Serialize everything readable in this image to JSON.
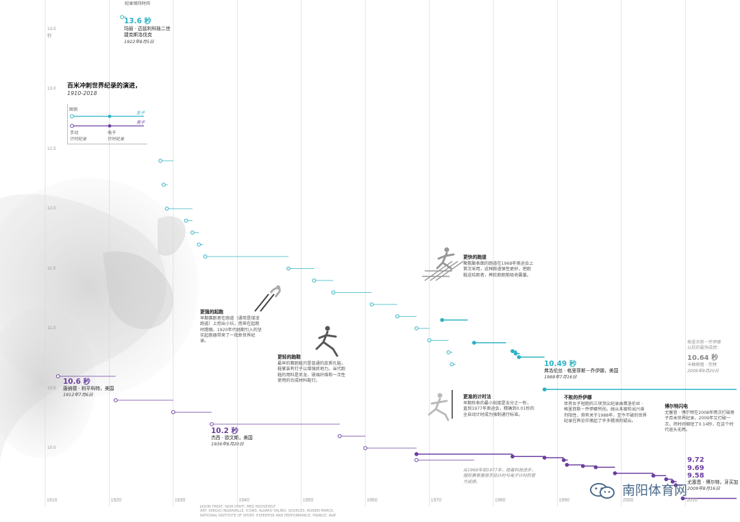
{
  "title": "百米冲刺世界纪录的演进，",
  "subtitle": "1910-2018",
  "colors": {
    "women": "#2bb2c3",
    "men": "#6b3fa0",
    "grid": "#d8d8d8",
    "text": "#222222"
  },
  "legend": {
    "label": "图例",
    "women": "女子",
    "men": "男子",
    "manual": "手动\n计时纪录",
    "electronic": "电子\n计时纪录"
  },
  "top_label": "纪录保持时间",
  "records": {
    "women_1922": {
      "time": "13.6 秒",
      "name": "玛丽 · 迈兹利科娃二世\n捷克斯洛伐克",
      "date": "1922年8月5日"
    },
    "men_1912": {
      "time": "10.6 秒",
      "name": "唐纳德 · 利平科特，美国",
      "date": "1912年7月6日"
    },
    "men_1936": {
      "time": "10.2 秒",
      "name": "杰西 · 欧文斯，美国",
      "date": "1936年6月20日"
    },
    "women_1988": {
      "time": "10.49 秒",
      "name": "弗洛伦丝 · 格里菲斯－乔伊娜，美国",
      "date": "1988年7月16日"
    },
    "women_fastest": {
      "head": "格里夫斯－乔伊娜\n以前的最快成绩：",
      "time": "10.64 秒",
      "name": "卡梅莉塔 · 杰特",
      "date": "2009年9月20日"
    },
    "men_recent": {
      "t1": "9.72",
      "t2": "9.69",
      "t3": "9.58",
      "name": "尤塞恩 · 博尔特，牙买加",
      "date": "2009年8月16日"
    }
  },
  "notes": {
    "blocks": {
      "head": "更强的起跑",
      "body": "早期赛跑者在跑道（通常是煤渣跑道）上挖出小坑，用来在起跑时蹬踏。1920年代她期引入的坚实起跑器带来了一批新世界纪录。"
    },
    "shoes": {
      "head": "更轻的跑鞋",
      "body": "最早的赛跑鞋只是普通的皮质孔鞋，鞋掌装有钉子以增强抓地力。当代跑鞋的用料是尼龙、玻璃纤维和一次性使用的合成材料鞋钉。"
    },
    "track": {
      "head": "更快的跑道",
      "body": "聚氨酯表面的跑道在1968年奥运会上首次采用，这种跑道弹性更好，把跑鞋送给跑者，摔跤跑跑能吸收震量。"
    },
    "timing": {
      "head": "更准的计时法",
      "body": "早期秒表的最小刻度是五分之一秒，直到1977年奥运会，精确到0.01秒的全自动计时成为强制通行标准。"
    },
    "flojo": {
      "head": "不败的乔伊娜",
      "body": "世界女子短跑的三项顶尖纪录由弗洛伦丝 · 格里菲斯－乔伊娜所创。她从未被检出兴奋剂阳性，但有关于1988年，至今不破的世界纪录在舆论中激起了许多猜测的疑云。"
    },
    "bolt": {
      "head": "博尔特闪电",
      "body": "尤塞恩 · 博尔特在2008年两次打破男子百米世界纪录，2009年又打破一次，将时间缩短了0.14秒，在这个时代遥头无两。"
    },
    "electronic": {
      "body": "从1968年到1977年，随着科技进步，国际赛事兼用手动计时与电子计时的官方成绩。"
    }
  },
  "credits": "JASON TREAT, NGM STAFF; MEG ROOSEVELT\nART: SERGIO INGRAVALLE. ICONS: ALVARO VALIÑO. SOURCES: ADRIEN MARCK,\nNATIONAL INSTITUTE OF SPORT, EXPERTISE AND PERFORMANCE, FRANCE; IAAF",
  "watermark": "南阳体育网",
  "chart_data": {
    "type": "line",
    "title": "百米冲刺世界纪录的演进，",
    "subtitle": "1910-2018",
    "xlabel": "",
    "ylabel": "秒",
    "xlim": [
      1910,
      2018
    ],
    "ylim": [
      9.5,
      13.75
    ],
    "x_ticks": [
      1910,
      1920,
      1930,
      1940,
      1950,
      1960,
      1970,
      1980,
      1990,
      2000,
      2010
    ],
    "y_ticks": [
      10.0,
      10.5,
      11.0,
      11.5,
      12.0,
      12.5,
      13.0,
      13.5
    ],
    "y_tick_labels": [
      "10.0",
      "10.5",
      "11.0",
      "11.5",
      "12.0",
      "12.5",
      "13.0",
      "13.5\n秒"
    ],
    "series": [
      {
        "name": "女子",
        "color": "#2bb2c3",
        "records": [
          {
            "time": 13.6,
            "start": 1922,
            "end": 1922.3,
            "timing": "manual"
          },
          {
            "time": 12.4,
            "start": 1928,
            "end": 1930,
            "timing": "manual"
          },
          {
            "time": 12.2,
            "start": 1928.5,
            "end": 1929,
            "timing": "manual"
          },
          {
            "time": 12.0,
            "start": 1929,
            "end": 1933,
            "timing": "manual"
          },
          {
            "time": 11.9,
            "start": 1932,
            "end": 1933,
            "timing": "manual"
          },
          {
            "time": 11.8,
            "start": 1933,
            "end": 1934,
            "timing": "manual"
          },
          {
            "time": 11.7,
            "start": 1934,
            "end": 1934.5,
            "timing": "manual"
          },
          {
            "time": 11.6,
            "start": 1935,
            "end": 1948,
            "timing": "manual"
          },
          {
            "time": 11.5,
            "start": 1948,
            "end": 1952,
            "timing": "manual"
          },
          {
            "time": 11.4,
            "start": 1952,
            "end": 1955,
            "timing": "manual"
          },
          {
            "time": 11.3,
            "start": 1955,
            "end": 1961,
            "timing": "manual"
          },
          {
            "time": 11.2,
            "start": 1961,
            "end": 1965,
            "timing": "manual"
          },
          {
            "time": 11.1,
            "start": 1965,
            "end": 1968,
            "timing": "manual"
          },
          {
            "time": 11.0,
            "start": 1968,
            "end": 1970,
            "timing": "manual"
          },
          {
            "time": 10.9,
            "start": 1970,
            "end": 1973,
            "timing": "manual"
          },
          {
            "time": 11.07,
            "start": 1972,
            "end": 1976,
            "timing": "electronic"
          },
          {
            "time": 10.8,
            "start": 1973,
            "end": 1973.5,
            "timing": "manual"
          },
          {
            "time": 10.7,
            "start": 1973.5,
            "end": 1974,
            "timing": "manual"
          },
          {
            "time": 10.88,
            "start": 1977,
            "end": 1982,
            "timing": "electronic"
          },
          {
            "time": 10.81,
            "start": 1983,
            "end": 1983.5,
            "timing": "electronic"
          },
          {
            "time": 10.79,
            "start": 1983.5,
            "end": 1984,
            "timing": "electronic"
          },
          {
            "time": 10.76,
            "start": 1984,
            "end": 1988,
            "timing": "electronic"
          },
          {
            "time": 10.49,
            "start": 1988,
            "end": 2018,
            "timing": "electronic"
          }
        ]
      },
      {
        "name": "男子",
        "color": "#6b3fa0",
        "records": [
          {
            "time": 10.6,
            "start": 1912,
            "end": 1921,
            "timing": "manual"
          },
          {
            "time": 10.4,
            "start": 1921,
            "end": 1930,
            "timing": "manual"
          },
          {
            "time": 10.3,
            "start": 1930,
            "end": 1936,
            "timing": "manual"
          },
          {
            "time": 10.2,
            "start": 1936,
            "end": 1956,
            "timing": "manual"
          },
          {
            "time": 10.1,
            "start": 1956,
            "end": 1960,
            "timing": "manual"
          },
          {
            "time": 10.0,
            "start": 1960,
            "end": 1968,
            "timing": "manual"
          },
          {
            "time": 9.9,
            "start": 1968,
            "end": 1977,
            "timing": "manual"
          },
          {
            "time": 9.95,
            "start": 1968,
            "end": 1983,
            "timing": "electronic"
          },
          {
            "time": 9.93,
            "start": 1983,
            "end": 1988,
            "timing": "electronic"
          },
          {
            "time": 9.92,
            "start": 1988,
            "end": 1991,
            "timing": "electronic"
          },
          {
            "time": 9.9,
            "start": 1991,
            "end": 1991.5,
            "timing": "electronic"
          },
          {
            "time": 9.86,
            "start": 1991.5,
            "end": 1994,
            "timing": "electronic"
          },
          {
            "time": 9.85,
            "start": 1994,
            "end": 1996,
            "timing": "electronic"
          },
          {
            "time": 9.84,
            "start": 1996,
            "end": 1999,
            "timing": "electronic"
          },
          {
            "time": 9.79,
            "start": 1999,
            "end": 2005,
            "timing": "electronic"
          },
          {
            "time": 9.77,
            "start": 2005,
            "end": 2007,
            "timing": "electronic"
          },
          {
            "time": 9.74,
            "start": 2007,
            "end": 2008,
            "timing": "electronic"
          },
          {
            "time": 9.72,
            "start": 2008,
            "end": 2008.5,
            "timing": "electronic"
          },
          {
            "time": 9.69,
            "start": 2008.5,
            "end": 2009.5,
            "timing": "electronic"
          },
          {
            "time": 9.58,
            "start": 2009.6,
            "end": 2018,
            "timing": "electronic"
          }
        ]
      }
    ]
  }
}
